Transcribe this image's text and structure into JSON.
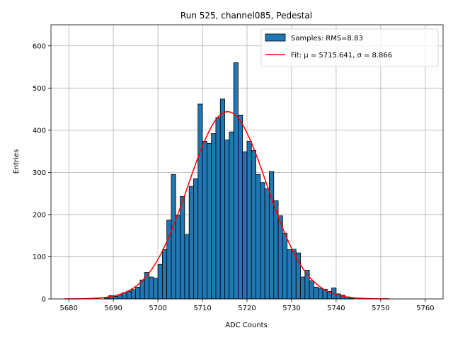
{
  "chart_data": {
    "type": "bar",
    "title": "Run 525, channel085, Pedestal",
    "xlabel": "ADC Counts",
    "ylabel": "Entries",
    "xlim": [
      5676,
      5764
    ],
    "ylim": [
      0,
      650
    ],
    "xticks": [
      5680,
      5690,
      5700,
      5710,
      5720,
      5730,
      5740,
      5750,
      5760
    ],
    "yticks": [
      0,
      100,
      200,
      300,
      400,
      500,
      600
    ],
    "grid": true,
    "legend_position": "top-right",
    "bin_width": 1,
    "bin_starts": [
      5688,
      5689,
      5690,
      5691,
      5692,
      5693,
      5694,
      5695,
      5696,
      5697,
      5698,
      5699,
      5700,
      5701,
      5702,
      5703,
      5704,
      5705,
      5706,
      5707,
      5708,
      5709,
      5710,
      5711,
      5712,
      5713,
      5714,
      5715,
      5716,
      5717,
      5718,
      5719,
      5720,
      5721,
      5722,
      5723,
      5724,
      5725,
      5726,
      5727,
      5728,
      5729,
      5730,
      5731,
      5732,
      5733,
      5734,
      5735,
      5736,
      5737,
      5738,
      5739,
      5740,
      5741,
      5742,
      5743
    ],
    "bin_counts": [
      2,
      8,
      6,
      10,
      15,
      18,
      22,
      28,
      45,
      63,
      52,
      49,
      82,
      117,
      187,
      295,
      198,
      243,
      153,
      267,
      285,
      462,
      374,
      369,
      392,
      430,
      474,
      377,
      396,
      560,
      436,
      349,
      374,
      352,
      295,
      276,
      261,
      302,
      233,
      197,
      156,
      117,
      118,
      109,
      52,
      68,
      43,
      28,
      25,
      23,
      18,
      26,
      12,
      9,
      5,
      2
    ],
    "series": [
      {
        "name": "Samples: RMS=8.83",
        "kind": "histogram"
      },
      {
        "name": "Fit: μ = 5715.641, σ = 8.866",
        "kind": "line",
        "color": "#ff0000",
        "mu": 5715.641,
        "sigma": 8.866,
        "peak": 444,
        "x_range": [
          5679,
          5752
        ]
      }
    ]
  },
  "colors": {
    "bar": "#1f77b4",
    "fit": "#ff0000"
  }
}
